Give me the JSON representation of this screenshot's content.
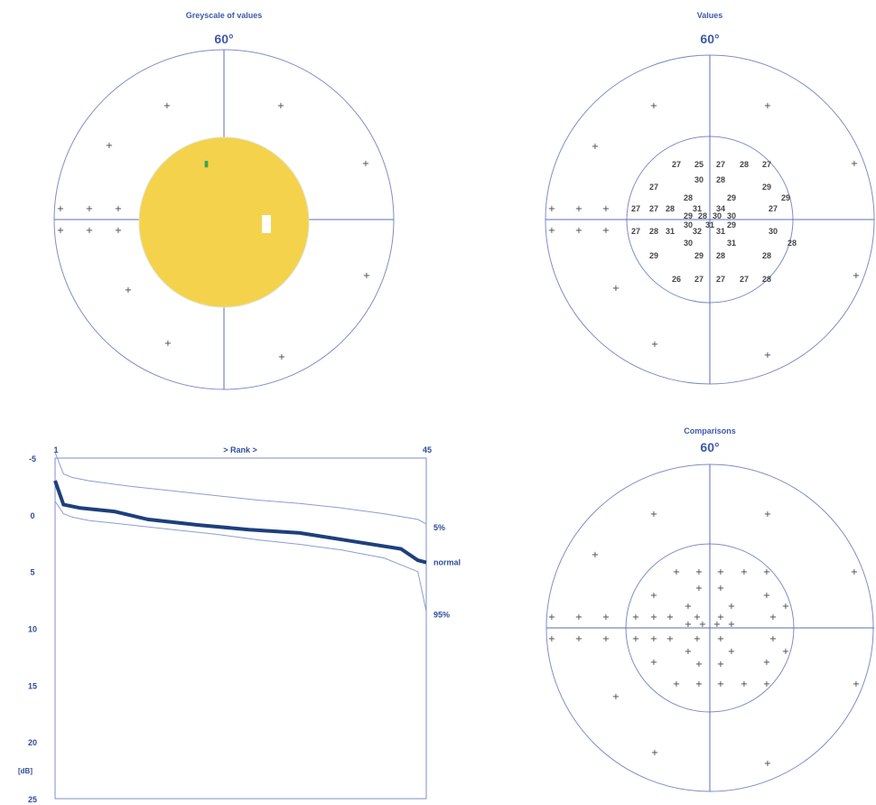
{
  "panels": {
    "greyscale_title": "Greyscale of values",
    "values_title": "Values",
    "comparisons_title": "Comparisons",
    "field_label": "60°"
  },
  "colors": {
    "axis": "#3d5aa8",
    "text": "#3d5aa8",
    "curve_thin": "#8c9cd6",
    "curve_thick": "#1e3f7c",
    "defect_fill": "#f4d24b",
    "marker": "#444444"
  },
  "chart_data": [
    {
      "type": "scatter",
      "title": "Greyscale of values",
      "field_degrees": "60°",
      "central_fill": "yellow (uniform)",
      "symbol": "+"
    },
    {
      "type": "scatter",
      "title": "Values",
      "field_degrees": "60°",
      "value_rows": [
        [
          "27",
          "25",
          "27",
          "28",
          "27"
        ],
        [
          "30",
          "28"
        ],
        [
          "27",
          "29"
        ],
        [
          "28",
          "29",
          "29"
        ],
        [
          "27",
          "27",
          "28",
          "31",
          "34",
          "27"
        ],
        [
          "29",
          "28",
          "30",
          "30"
        ],
        [
          "30",
          "31",
          "29"
        ],
        [
          "27",
          "28",
          "31",
          "32",
          "31",
          "30"
        ],
        [
          "30",
          "31",
          "28"
        ],
        [
          "29",
          "29",
          "28",
          "28"
        ],
        [
          "26",
          "27",
          "27",
          "27",
          "28"
        ]
      ],
      "symbol": "+"
    },
    {
      "type": "line",
      "title": "> Rank >",
      "xlabel": "Rank",
      "ylabel": "[dB]",
      "x_ticks": [
        "1",
        "45"
      ],
      "y_ticks": [
        "-5",
        "0",
        "5",
        "10",
        "15",
        "20",
        "25"
      ],
      "xlim": [
        1,
        45
      ],
      "ylim": [
        -5,
        25
      ],
      "series": [
        {
          "name": "5%",
          "x": [
            1,
            2,
            3,
            5,
            10,
            15,
            20,
            25,
            30,
            35,
            40,
            44,
            45
          ],
          "y": [
            -5.5,
            -3.6,
            -3.3,
            -3.0,
            -2.5,
            -2.1,
            -1.7,
            -1.3,
            -1.0,
            -0.6,
            -0.1,
            0.4,
            0.8
          ]
        },
        {
          "name": "normal",
          "x": [
            1,
            2,
            4,
            8,
            12,
            18,
            24,
            30,
            36,
            42,
            44,
            45
          ],
          "y": [
            -3.0,
            -0.9,
            -0.6,
            -0.3,
            0.4,
            0.9,
            1.3,
            1.6,
            2.3,
            3.0,
            4.0,
            4.2
          ]
        },
        {
          "name": "95%",
          "x": [
            1,
            2,
            3,
            5,
            10,
            15,
            20,
            25,
            30,
            35,
            40,
            44,
            45
          ],
          "y": [
            -1.2,
            -0.1,
            0.2,
            0.5,
            0.9,
            1.3,
            1.7,
            2.2,
            2.6,
            3.1,
            3.8,
            5.0,
            8.5
          ]
        }
      ],
      "labels": [
        "5%",
        "normal",
        "95%"
      ],
      "grid": false
    },
    {
      "type": "scatter",
      "title": "Comparisons",
      "field_degrees": "60°",
      "symbol": "+"
    }
  ]
}
